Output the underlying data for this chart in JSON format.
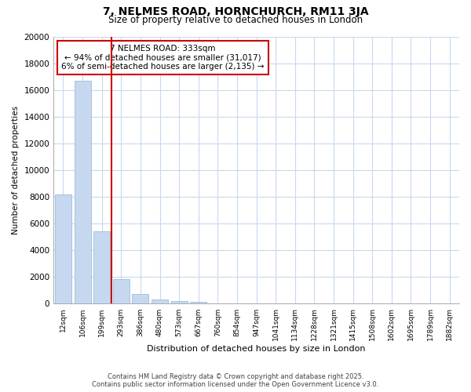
{
  "title1": "7, NELMES ROAD, HORNCHURCH, RM11 3JA",
  "title2": "Size of property relative to detached houses in London",
  "xlabel": "Distribution of detached houses by size in London",
  "ylabel": "Number of detached properties",
  "annotation_line1": "7 NELMES ROAD: 333sqm",
  "annotation_line2": "← 94% of detached houses are smaller (31,017)",
  "annotation_line3": "6% of semi-detached houses are larger (2,135) →",
  "bar_color": "#c5d8f0",
  "bar_edge_color": "#a0bcd8",
  "vline_color": "#cc0000",
  "vline_x": 2.5,
  "categories": [
    "12sqm",
    "106sqm",
    "199sqm",
    "293sqm",
    "386sqm",
    "480sqm",
    "573sqm",
    "667sqm",
    "760sqm",
    "854sqm",
    "947sqm",
    "1041sqm",
    "1134sqm",
    "1228sqm",
    "1321sqm",
    "1415sqm",
    "1508sqm",
    "1602sqm",
    "1695sqm",
    "1789sqm",
    "1882sqm"
  ],
  "values": [
    8200,
    16700,
    5400,
    1850,
    750,
    300,
    200,
    150,
    50,
    0,
    0,
    0,
    0,
    0,
    0,
    0,
    0,
    0,
    0,
    0,
    0
  ],
  "ylim": [
    0,
    20000
  ],
  "yticks": [
    0,
    2000,
    4000,
    6000,
    8000,
    10000,
    12000,
    14000,
    16000,
    18000,
    20000
  ],
  "footer1": "Contains HM Land Registry data © Crown copyright and database right 2025.",
  "footer2": "Contains public sector information licensed under the Open Government Licence v3.0.",
  "bg_color": "#ffffff",
  "plot_bg_color": "#ffffff",
  "grid_color": "#c8d8f0",
  "annotation_box_color": "#ffffff",
  "annotation_box_edge": "#cc0000"
}
